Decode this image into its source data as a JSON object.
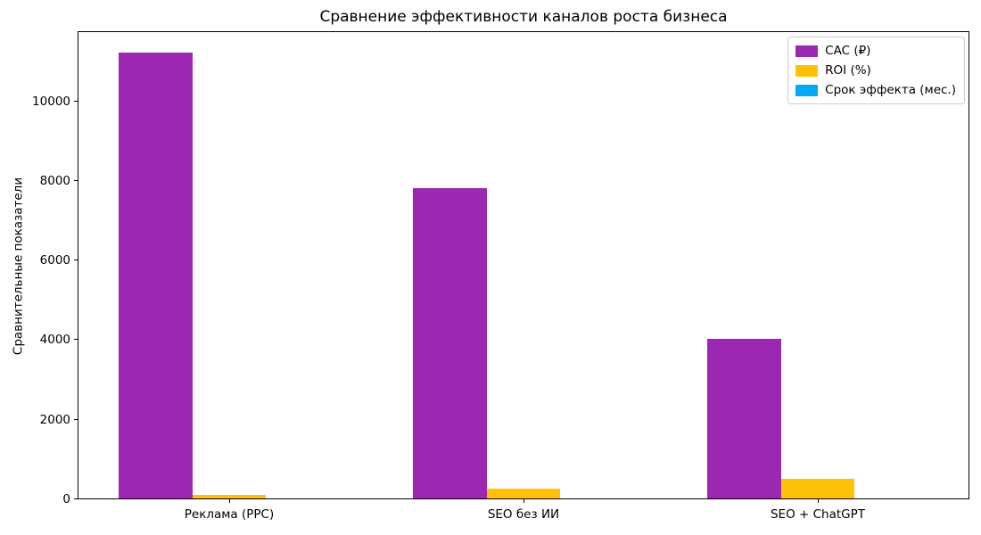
{
  "chart_data": {
    "type": "bar",
    "title": "Сравнение эффективности каналов роста бизнеса",
    "ylabel": "Сравнительные показатели",
    "xlabel": "",
    "categories": [
      "Реклама (PPC)",
      "SEO без ИИ",
      "SEO + ChatGPT"
    ],
    "series": [
      {
        "name": "CAC (₽)",
        "color": "#9C27B0",
        "values": [
          11200,
          7800,
          4000
        ]
      },
      {
        "name": "ROI (%)",
        "color": "#FFC107",
        "values": [
          100,
          250,
          500
        ]
      },
      {
        "name": "Срок эффекта (мес.)",
        "color": "#03A9F4",
        "values": [
          1,
          6,
          3
        ]
      }
    ],
    "yticks": [
      0,
      2000,
      4000,
      6000,
      8000,
      10000
    ],
    "ylim": [
      0,
      11760
    ],
    "legend_position": "upper right",
    "grid": false,
    "bar_width_fraction": 0.25,
    "background": "#ffffff",
    "spine_color": "#000000"
  }
}
